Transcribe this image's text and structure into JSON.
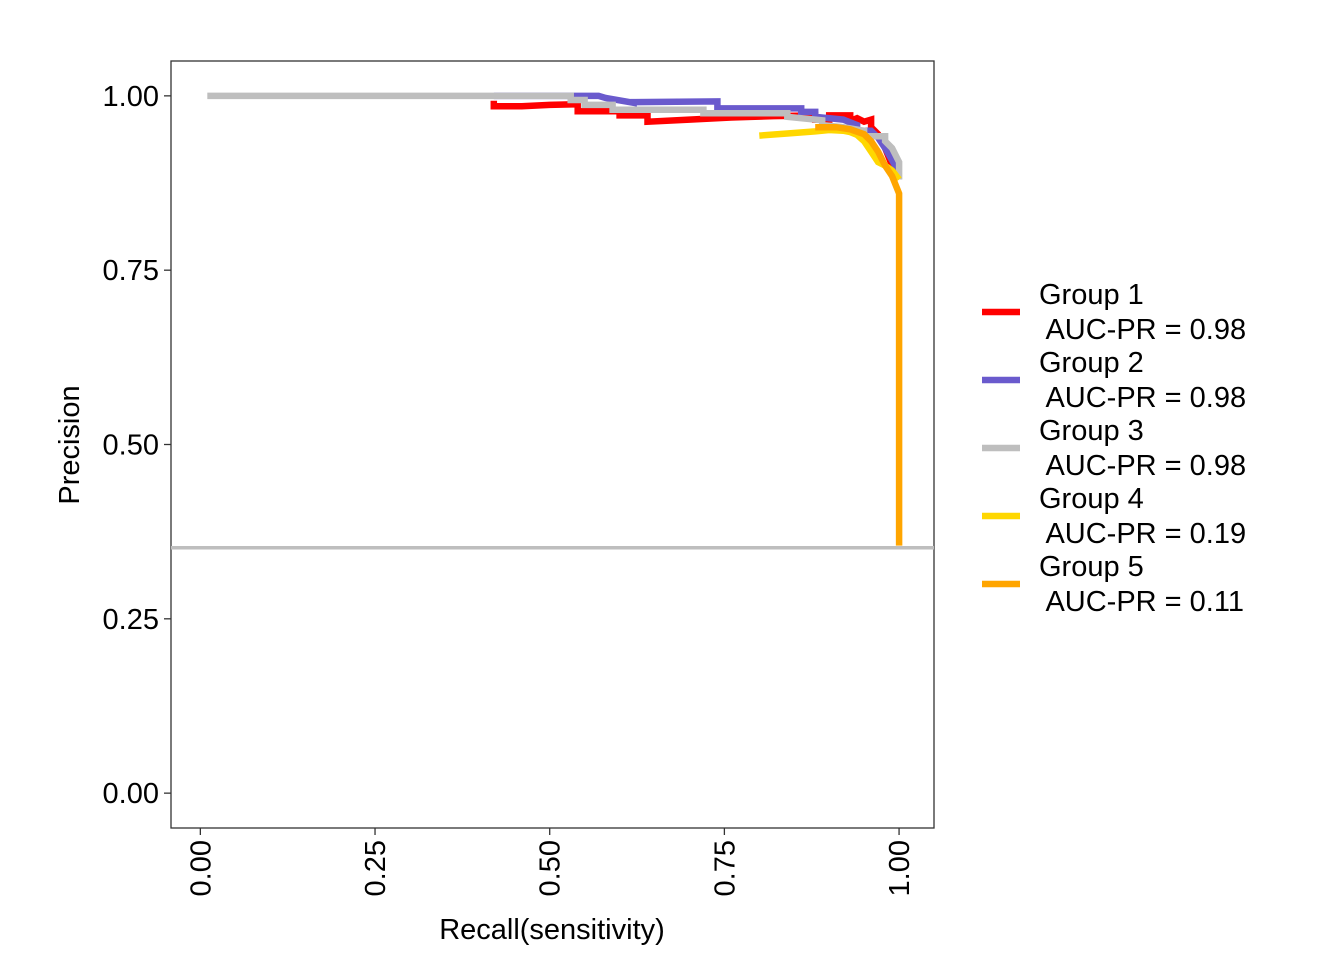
{
  "chart_data": {
    "type": "line",
    "title": "",
    "xlabel": "Recall(sensitivity)",
    "ylabel": "Precision",
    "xlim": [
      -0.042,
      1.05
    ],
    "ylim": [
      -0.05,
      1.05
    ],
    "x_ticks": [
      0,
      0.25,
      0.5,
      0.75,
      1
    ],
    "x_tick_labels": [
      "0.00",
      "0.25",
      "0.50",
      "0.75",
      "1.00"
    ],
    "y_ticks": [
      0,
      0.25,
      0.5,
      0.75,
      1
    ],
    "y_tick_labels": [
      "0.00",
      "0.25",
      "0.50",
      "0.75",
      "1.00"
    ],
    "grid": false,
    "legend_position": "right",
    "baseline": {
      "y": 0.352,
      "color": "#BEBEBE"
    },
    "series": [
      {
        "name_line1": "Group 1",
        "name_line2": " AUC-PR = 0.98",
        "color": "#FF0000",
        "x": [
          0.42,
          0.42,
          0.46,
          0.5,
          0.54,
          0.54,
          0.6,
          0.6,
          0.64,
          0.64,
          0.7,
          0.76,
          0.82,
          0.88,
          0.88,
          0.9,
          0.9,
          0.93,
          0.93,
          0.94,
          0.95,
          0.96,
          0.96,
          0.97,
          0.98,
          0.99,
          1.0
        ],
        "y": [
          0.993,
          0.985,
          0.985,
          0.987,
          0.988,
          0.978,
          0.978,
          0.972,
          0.972,
          0.963,
          0.966,
          0.969,
          0.971,
          0.972,
          0.966,
          0.966,
          0.972,
          0.972,
          0.964,
          0.968,
          0.963,
          0.966,
          0.955,
          0.945,
          0.925,
          0.9,
          0.88
        ]
      },
      {
        "name_line1": "Group 2",
        "name_line2": " AUC-PR = 0.98",
        "color": "#6A5ACD",
        "x": [
          0.42,
          0.57,
          0.58,
          0.62,
          0.62,
          0.74,
          0.74,
          0.86,
          0.86,
          0.88,
          0.88,
          0.92,
          0.94,
          0.94,
          0.96,
          0.97,
          0.98,
          1.0
        ],
        "y": [
          1.0,
          1.0,
          0.997,
          0.99,
          0.991,
          0.992,
          0.982,
          0.982,
          0.977,
          0.977,
          0.97,
          0.966,
          0.958,
          0.95,
          0.95,
          0.94,
          0.925,
          0.89
        ]
      },
      {
        "name_line1": "Group 3",
        "name_line2": " AUC-PR = 0.98",
        "color": "#BEBEBE",
        "x": [
          0.01,
          0.53,
          0.53,
          0.55,
          0.55,
          0.59,
          0.59,
          0.72,
          0.72,
          0.84,
          0.84,
          0.89,
          0.89,
          0.92,
          0.95,
          0.95,
          0.98,
          0.98,
          0.99,
          1.0,
          1.0
        ],
        "y": [
          1.0,
          1.0,
          0.994,
          0.994,
          0.987,
          0.987,
          0.98,
          0.98,
          0.975,
          0.975,
          0.97,
          0.965,
          0.958,
          0.955,
          0.95,
          0.942,
          0.942,
          0.935,
          0.925,
          0.905,
          0.88
        ]
      },
      {
        "name_line1": "Group 4",
        "name_line2": " AUC-PR = 0.19",
        "color": "#FFD700",
        "x": [
          0.8,
          0.84,
          0.88,
          0.9,
          0.92,
          0.93,
          0.94,
          0.95,
          0.96,
          0.97,
          0.98,
          0.99,
          1.0
        ],
        "y": [
          0.943,
          0.946,
          0.949,
          0.951,
          0.95,
          0.948,
          0.944,
          0.935,
          0.92,
          0.905,
          0.9,
          0.893,
          0.88
        ]
      },
      {
        "name_line1": "Group 5",
        "name_line2": " AUC-PR = 0.11",
        "color": "#FFA500",
        "x": [
          0.88,
          0.91,
          0.93,
          0.95,
          0.96,
          0.97,
          0.98,
          0.99,
          1.0,
          1.0
        ],
        "y": [
          0.955,
          0.955,
          0.952,
          0.945,
          0.935,
          0.92,
          0.9,
          0.885,
          0.86,
          0.355
        ]
      }
    ]
  }
}
